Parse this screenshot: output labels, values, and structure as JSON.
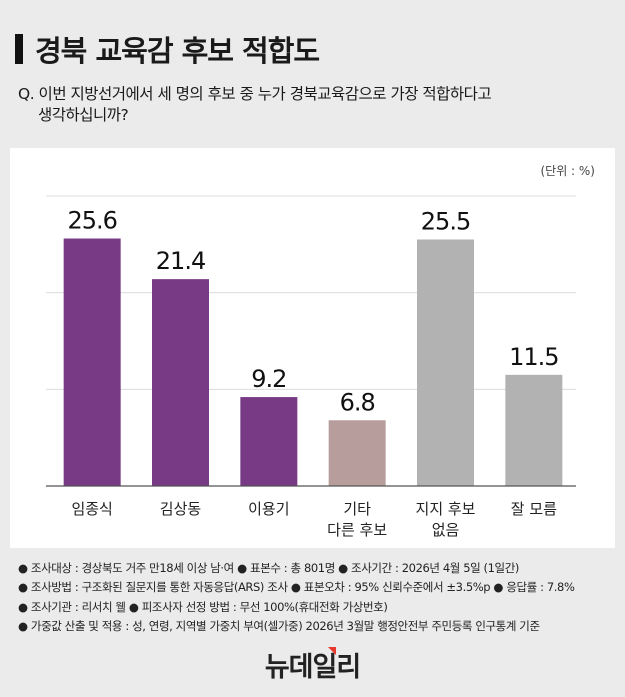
{
  "title": "경북 교육감 후보 적합도",
  "question": {
    "line1": "Q. 이번 지방선거에서 세 명의 후보 중 누가 경북교육감으로 가장 적합하다고",
    "line2": "생각하십니까?"
  },
  "unit_label": "(단위 : %)",
  "chart_data": {
    "type": "bar",
    "categories": [
      "임종식",
      "김상동",
      "이용기",
      "기타\n다른 후보",
      "지지 후보\n없음",
      "잘 모름"
    ],
    "values": [
      25.6,
      21.4,
      9.2,
      6.8,
      25.5,
      11.5
    ],
    "colors": [
      "#783a85",
      "#783a85",
      "#783a85",
      "#b89d9d",
      "#b2b2b2",
      "#b2b2b2"
    ],
    "ylim": [
      0,
      30
    ],
    "gridlines": [
      10,
      20,
      30
    ],
    "grid": true,
    "title": "",
    "xlabel": "",
    "ylabel": ""
  },
  "notes": [
    "● 조사대상 : 경상북도 거주 만18세 이상 남·여 ● 표본수 : 총 801명  ● 조사기간 : 2026년 4월 5일 (1일간)",
    "● 조사방법 : 구조화된 질문지를 통한 자동응답(ARS) 조사 ● 표본오차 : 95% 신뢰수준에서 ±3.5%p ● 응답률 : 7.8%",
    "● 조사기관 : 리서치 웰 ● 피조사자 선정 방법 : 무선 100%(휴대전화 가상번호)",
    "● 가중값 산출 및 적용 : 성, 연령, 지역별 가중치 부여(셀가중)  2026년 3월말 행정안전부 주민등록 인구통계 기준"
  ],
  "logo": "뉴데일리"
}
